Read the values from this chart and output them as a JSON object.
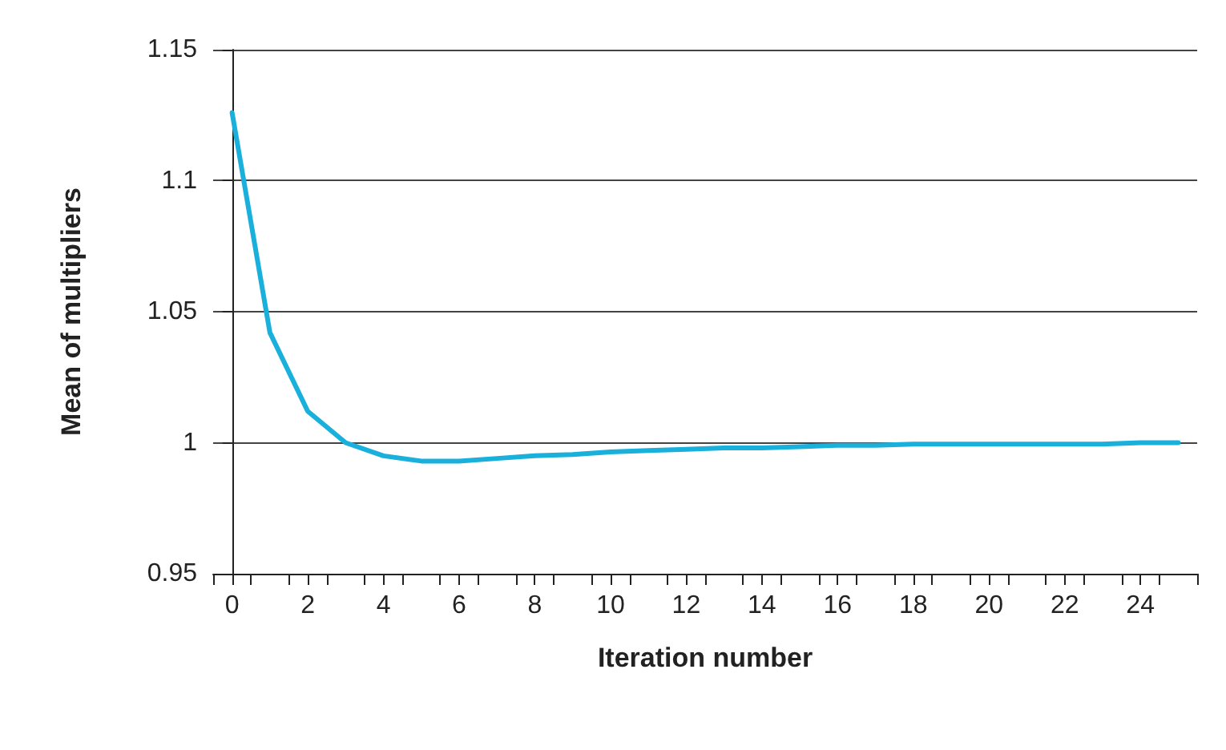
{
  "chart_data": {
    "type": "line",
    "xlabel": "Iteration number",
    "ylabel": "Mean of multipliers",
    "x": [
      0,
      1,
      2,
      3,
      4,
      5,
      6,
      7,
      8,
      9,
      10,
      11,
      12,
      13,
      14,
      15,
      16,
      17,
      18,
      19,
      20,
      21,
      22,
      23,
      24,
      25
    ],
    "series": [
      {
        "color": "#1ab0dc",
        "values": [
          1.126,
          1.042,
          1.012,
          1.0,
          0.995,
          0.993,
          0.993,
          0.994,
          0.995,
          0.9955,
          0.9965,
          0.997,
          0.9975,
          0.998,
          0.998,
          0.9985,
          0.999,
          0.999,
          0.9995,
          0.9995,
          0.9995,
          0.9995,
          0.9995,
          0.9995,
          1.0,
          1.0
        ]
      }
    ],
    "xlim": [
      -0.5,
      25.5
    ],
    "xticks": [
      0,
      2,
      4,
      6,
      8,
      10,
      12,
      14,
      16,
      18,
      20,
      22,
      24,
      {
        "value": -0.5,
        "label": null
      },
      {
        "value": 0.5,
        "label": null
      },
      {
        "value": 1.5,
        "label": null
      },
      {
        "value": 2.5,
        "label": null
      },
      {
        "value": 3.5,
        "label": null
      },
      {
        "value": 4.5,
        "label": null
      },
      {
        "value": 5.5,
        "label": null
      },
      {
        "value": 6.5,
        "label": null
      },
      {
        "value": 7.5,
        "label": null
      },
      {
        "value": 8.5,
        "label": null
      },
      {
        "value": 9.5,
        "label": null
      },
      {
        "value": 10.5,
        "label": null
      },
      {
        "value": 11.5,
        "label": null
      },
      {
        "value": 12.5,
        "label": null
      },
      {
        "value": 13.5,
        "label": null
      },
      {
        "value": 14.5,
        "label": null
      },
      {
        "value": 15.5,
        "label": null
      },
      {
        "value": 16.5,
        "label": null
      },
      {
        "value": 17.5,
        "label": null
      },
      {
        "value": 18.5,
        "label": null
      },
      {
        "value": 19.5,
        "label": null
      },
      {
        "value": 20.5,
        "label": null
      },
      {
        "value": 21.5,
        "label": null
      },
      {
        "value": 22.5,
        "label": null
      },
      {
        "value": 23.5,
        "label": null
      },
      {
        "value": 24.5,
        "label": null
      },
      {
        "value": 25.5,
        "label": null
      }
    ],
    "ylim": [
      0.95,
      1.15
    ],
    "yticks": [
      0.95,
      1,
      1.05,
      1.1,
      1.15
    ],
    "grid": "y",
    "marker": "none",
    "line_style": "solid"
  }
}
